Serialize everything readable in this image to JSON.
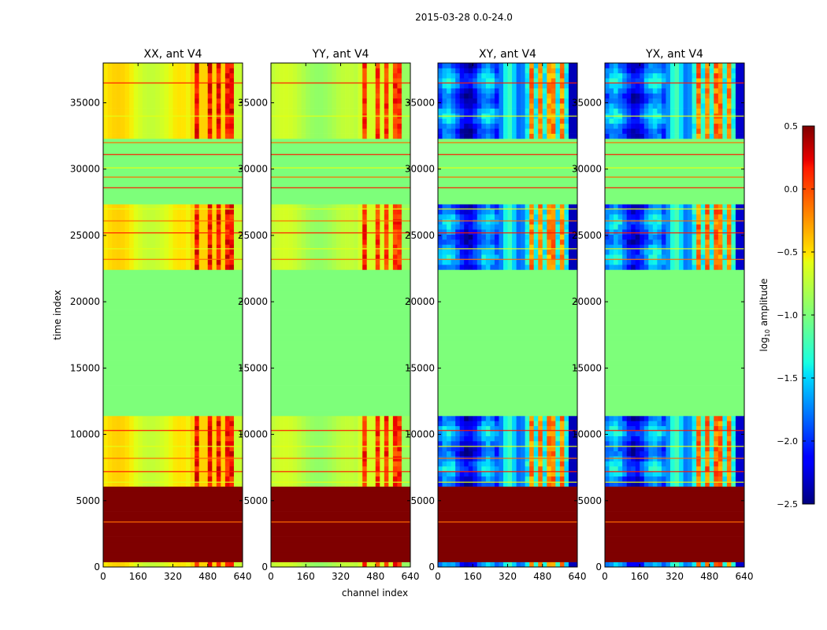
{
  "figure": {
    "suptitle": "2015-03-28 0.0-24.0"
  },
  "chart_data": {
    "type": "heatmap",
    "ylabel": "time index",
    "xlabel": "channel index",
    "xlim": [
      0,
      640
    ],
    "ylim": [
      0,
      38000
    ],
    "xticks": [
      0,
      160,
      320,
      480,
      640
    ],
    "yticks": [
      0,
      5000,
      10000,
      15000,
      20000,
      25000,
      30000,
      35000
    ],
    "xtick_labels": [
      "0",
      "160",
      "320",
      "480",
      "640"
    ],
    "ytick_labels": [
      "0",
      "5000",
      "10000",
      "15000",
      "20000",
      "25000",
      "30000",
      "35000"
    ],
    "panels": [
      {
        "id": "xx",
        "title": "XX, ant V4",
        "kind": "parallel",
        "shift": 0.0
      },
      {
        "id": "yy",
        "title": "YY, ant V4",
        "kind": "parallel",
        "shift": -0.2
      },
      {
        "id": "xy",
        "title": "XY, ant V4",
        "kind": "cross",
        "shift": 0.0
      },
      {
        "id": "yx",
        "title": "YX, ant V4",
        "kind": "cross",
        "shift": 0.05
      }
    ],
    "time_blocks": [
      {
        "t0": 0,
        "t1": 400,
        "state": "data"
      },
      {
        "t0": 400,
        "t1": 6000,
        "state": "saturated"
      },
      {
        "t0": 6000,
        "t1": 11500,
        "state": "data"
      },
      {
        "t0": 11500,
        "t1": 22300,
        "state": "flagged"
      },
      {
        "t0": 22300,
        "t1": 22600,
        "state": "band"
      },
      {
        "t0": 22600,
        "t1": 27300,
        "state": "data"
      },
      {
        "t0": 27300,
        "t1": 32300,
        "state": "flagged"
      },
      {
        "t0": 32300,
        "t1": 38000,
        "state": "data"
      }
    ],
    "colorbar": {
      "label": "log",
      "label_sub": "10",
      "label_suffix": " amplitude",
      "colormap": "jet",
      "vmin": -2.5,
      "vmax": 0.5,
      "ticks": [
        0.5,
        0.0,
        -0.5,
        -1.0,
        -1.5,
        -2.0,
        -2.5
      ],
      "tick_labels": [
        "0.5",
        "0.0",
        "−0.5",
        "−1.0",
        "−1.5",
        "−2.0",
        "−2.5"
      ]
    }
  }
}
